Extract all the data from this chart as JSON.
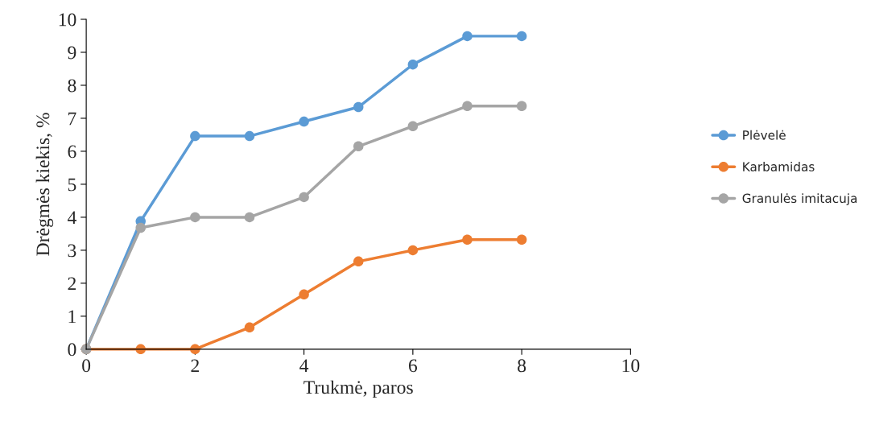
{
  "chart_data": {
    "type": "line",
    "xlabel": "Trukmė, paros",
    "ylabel": "Drėgmės kiekis, %",
    "x": [
      0,
      1,
      2,
      3,
      4,
      5,
      6,
      7,
      8
    ],
    "series": [
      {
        "name": "Plėvelė",
        "color": "#5b9bd5",
        "values": [
          0,
          3.88,
          6.46,
          6.46,
          6.9,
          7.34,
          8.63,
          9.49,
          9.49
        ]
      },
      {
        "name": "Karbamidas",
        "color": "#ed7d31",
        "values": [
          0,
          0,
          0,
          0.66,
          1.66,
          2.66,
          3.0,
          3.32,
          3.32
        ]
      },
      {
        "name": "Granulės imitacuja",
        "color": "#a5a5a5",
        "values": [
          0,
          3.68,
          4.0,
          4.0,
          4.61,
          6.15,
          6.76,
          7.37,
          7.37
        ]
      }
    ],
    "xlim": [
      0,
      10
    ],
    "xticks": [
      0,
      2,
      4,
      6,
      8,
      10
    ],
    "ylim": [
      0,
      10
    ],
    "yticks": [
      0,
      1,
      2,
      3,
      4,
      5,
      6,
      7,
      8,
      9,
      10
    ],
    "grid": false,
    "legend": "right",
    "marker": "circle",
    "line_style": "solid"
  }
}
